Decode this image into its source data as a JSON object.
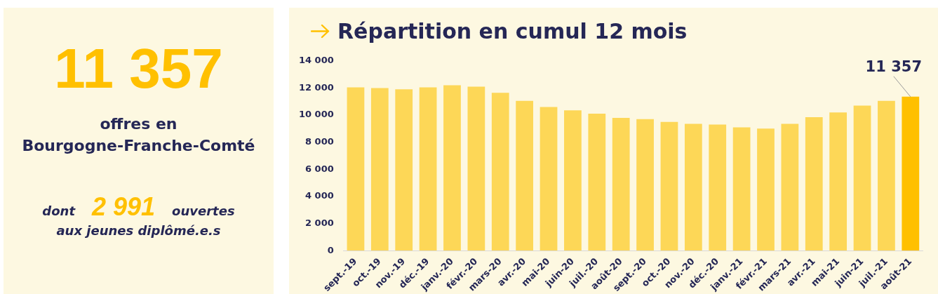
{
  "chart_data": [
    {
      "type": "other",
      "title": "11 357",
      "subtitle": "offres en Bourgogne-Franche-Comté",
      "annotations": [
        "dont",
        "2 991",
        "ouvertes",
        "aux jeunes diplômé.e.s"
      ]
    },
    {
      "type": "bar",
      "title": "Répartition en cumul 12 mois",
      "categories": [
        "sept.-19",
        "oct.-19",
        "nov.-19",
        "déc.-19",
        "janv.-20",
        "févr.-20",
        "mars-20",
        "avr.-20",
        "mai-20",
        "juin-20",
        "juil.-20",
        "août-20",
        "sept.-20",
        "oct.-20",
        "nov.-20",
        "déc.-20",
        "janv.-21",
        "févr.-21",
        "mars-21",
        "avr.-21",
        "mai-21",
        "juin-21",
        "juil.-21",
        "août-21"
      ],
      "values": [
        12050,
        12000,
        11900,
        12050,
        12200,
        12100,
        11650,
        11050,
        10600,
        10350,
        10100,
        9800,
        9700,
        9500,
        9350,
        9300,
        9100,
        9000,
        9350,
        9850,
        10200,
        10700,
        11050,
        11357
      ],
      "colors": [
        "#fdd757",
        "#fdd757",
        "#fdd757",
        "#fdd757",
        "#fdd757",
        "#fdd757",
        "#fdd757",
        "#fdd757",
        "#fdd757",
        "#fdd757",
        "#fdd757",
        "#fdd757",
        "#fdd757",
        "#fdd757",
        "#fdd757",
        "#fdd757",
        "#fdd757",
        "#fdd757",
        "#fdd757",
        "#fdd757",
        "#fdd757",
        "#fdd757",
        "#fdd757",
        "#ffc000"
      ],
      "value_labels": [
        null,
        null,
        null,
        null,
        null,
        null,
        null,
        null,
        null,
        null,
        null,
        null,
        null,
        null,
        null,
        null,
        null,
        null,
        null,
        null,
        null,
        null,
        null,
        "11 357"
      ],
      "ylim": [
        0,
        14000
      ],
      "yticks": [
        0,
        {
          "value": 2000,
          "label": "2 000"
        },
        {
          "value": 4000,
          "label": "4 000"
        },
        {
          "value": 6000,
          "label": "6 000"
        },
        {
          "value": 8000,
          "label": "8 000"
        },
        {
          "value": 10000,
          "label": "10 000"
        },
        {
          "value": 12000,
          "label": "12 000"
        },
        {
          "value": 14000,
          "label": "14 000"
        }
      ],
      "grid": false,
      "legend": false
    }
  ]
}
